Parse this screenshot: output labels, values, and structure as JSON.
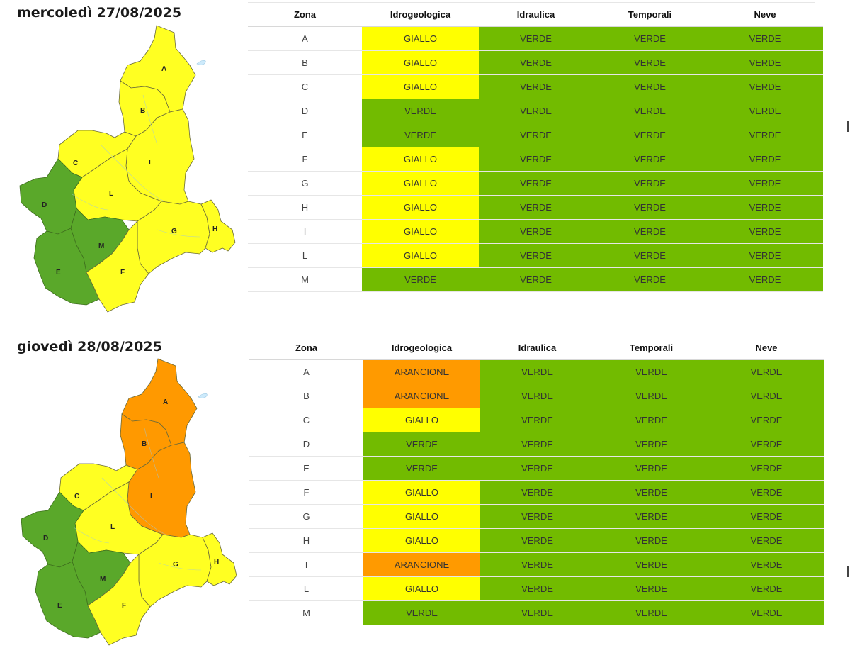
{
  "colors": {
    "verde": "#72bb00",
    "giallo": "#ffff00",
    "arancione": "#ff9a00",
    "map_green": "#5aa82a",
    "map_yellow": "#ffff22",
    "map_orange": "#ff9900"
  },
  "columns": [
    "Zona",
    "Idrogeologica",
    "Idraulica",
    "Temporali",
    "Neve"
  ],
  "days": [
    {
      "title": "mercoledì 27/08/2025",
      "rows": [
        {
          "zona": "A",
          "idrogeologica": "GIALLO",
          "idraulica": "VERDE",
          "temporali": "VERDE",
          "neve": "VERDE"
        },
        {
          "zona": "B",
          "idrogeologica": "GIALLO",
          "idraulica": "VERDE",
          "temporali": "VERDE",
          "neve": "VERDE"
        },
        {
          "zona": "C",
          "idrogeologica": "GIALLO",
          "idraulica": "VERDE",
          "temporali": "VERDE",
          "neve": "VERDE"
        },
        {
          "zona": "D",
          "idrogeologica": "VERDE",
          "idraulica": "VERDE",
          "temporali": "VERDE",
          "neve": "VERDE"
        },
        {
          "zona": "E",
          "idrogeologica": "VERDE",
          "idraulica": "VERDE",
          "temporali": "VERDE",
          "neve": "VERDE"
        },
        {
          "zona": "F",
          "idrogeologica": "GIALLO",
          "idraulica": "VERDE",
          "temporali": "VERDE",
          "neve": "VERDE"
        },
        {
          "zona": "G",
          "idrogeologica": "GIALLO",
          "idraulica": "VERDE",
          "temporali": "VERDE",
          "neve": "VERDE"
        },
        {
          "zona": "H",
          "idrogeologica": "GIALLO",
          "idraulica": "VERDE",
          "temporali": "VERDE",
          "neve": "VERDE"
        },
        {
          "zona": "I",
          "idrogeologica": "GIALLO",
          "idraulica": "VERDE",
          "temporali": "VERDE",
          "neve": "VERDE"
        },
        {
          "zona": "L",
          "idrogeologica": "GIALLO",
          "idraulica": "VERDE",
          "temporali": "VERDE",
          "neve": "VERDE"
        },
        {
          "zona": "M",
          "idrogeologica": "VERDE",
          "idraulica": "VERDE",
          "temporali": "VERDE",
          "neve": "VERDE"
        }
      ],
      "map_zones": {
        "A": "giallo",
        "B": "giallo",
        "C": "giallo",
        "D": "verde",
        "E": "verde",
        "F": "giallo",
        "G": "giallo",
        "H": "giallo",
        "I": "giallo",
        "L": "giallo",
        "M": "verde"
      }
    },
    {
      "title": "giovedì 28/08/2025",
      "rows": [
        {
          "zona": "A",
          "idrogeologica": "ARANCIONE",
          "idraulica": "VERDE",
          "temporali": "VERDE",
          "neve": "VERDE"
        },
        {
          "zona": "B",
          "idrogeologica": "ARANCIONE",
          "idraulica": "VERDE",
          "temporali": "VERDE",
          "neve": "VERDE"
        },
        {
          "zona": "C",
          "idrogeologica": "GIALLO",
          "idraulica": "VERDE",
          "temporali": "VERDE",
          "neve": "VERDE"
        },
        {
          "zona": "D",
          "idrogeologica": "VERDE",
          "idraulica": "VERDE",
          "temporali": "VERDE",
          "neve": "VERDE"
        },
        {
          "zona": "E",
          "idrogeologica": "VERDE",
          "idraulica": "VERDE",
          "temporali": "VERDE",
          "neve": "VERDE"
        },
        {
          "zona": "F",
          "idrogeologica": "GIALLO",
          "idraulica": "VERDE",
          "temporali": "VERDE",
          "neve": "VERDE"
        },
        {
          "zona": "G",
          "idrogeologica": "GIALLO",
          "idraulica": "VERDE",
          "temporali": "VERDE",
          "neve": "VERDE"
        },
        {
          "zona": "H",
          "idrogeologica": "GIALLO",
          "idraulica": "VERDE",
          "temporali": "VERDE",
          "neve": "VERDE"
        },
        {
          "zona": "I",
          "idrogeologica": "ARANCIONE",
          "idraulica": "VERDE",
          "temporali": "VERDE",
          "neve": "VERDE"
        },
        {
          "zona": "L",
          "idrogeologica": "GIALLO",
          "idraulica": "VERDE",
          "temporali": "VERDE",
          "neve": "VERDE"
        },
        {
          "zona": "M",
          "idrogeologica": "VERDE",
          "idraulica": "VERDE",
          "temporali": "VERDE",
          "neve": "VERDE"
        }
      ],
      "map_zones": {
        "A": "arancione",
        "B": "arancione",
        "C": "giallo",
        "D": "verde",
        "E": "verde",
        "F": "giallo",
        "G": "giallo",
        "H": "giallo",
        "I": "arancione",
        "L": "giallo",
        "M": "verde"
      }
    }
  ]
}
